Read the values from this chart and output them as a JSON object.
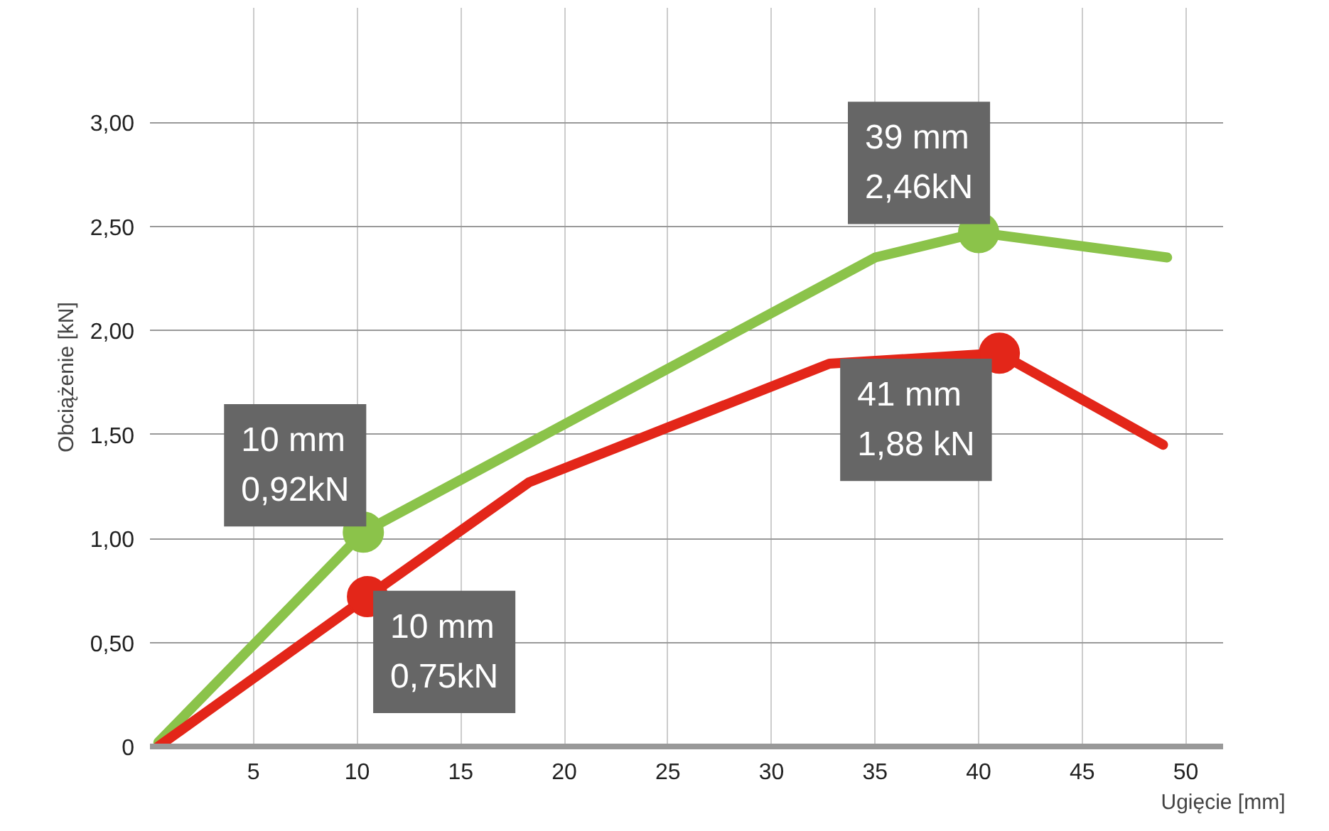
{
  "chart_data": {
    "type": "line",
    "xlabel": "Ugięcie [mm]",
    "ylabel": "Obciążenie [kN]",
    "series": [
      {
        "color": "#8bc34a",
        "x": [
          0.4,
          10.3,
          35,
          40,
          49.1
        ],
        "values": [
          0.02,
          1.03,
          2.35,
          2.47,
          2.35
        ]
      },
      {
        "color": "#e32619",
        "x": [
          0.4,
          10.5,
          18.3,
          32.8,
          41,
          48.9
        ],
        "values": [
          0.0,
          0.72,
          1.27,
          1.84,
          1.89,
          1.45
        ]
      }
    ],
    "xlim": [
      0,
      51.8
    ],
    "ylim": [
      0,
      3.55
    ],
    "xticks": [
      5,
      10,
      15,
      20,
      25,
      30,
      35,
      40,
      45,
      50
    ],
    "yticks": [
      {
        "value": 0,
        "label": "0"
      },
      {
        "value": 0.5,
        "label": "0,50"
      },
      {
        "value": 1,
        "label": "1,00"
      },
      {
        "value": 1.5,
        "label": "1,50"
      },
      {
        "value": 2,
        "label": "2,00"
      },
      {
        "value": 2.5,
        "label": "2,50"
      },
      {
        "value": 3,
        "label": "3,00"
      }
    ],
    "grid": true,
    "marker": "none",
    "line_style": "solid",
    "annotations": [
      {
        "text": "10 mm\n0,92kN",
        "x": 10.3,
        "y": 1.03
      },
      {
        "text": "10 mm\n0,75kN",
        "x": 10.5,
        "y": 0.72
      },
      {
        "text": "39 mm\n2,46kN",
        "x": 40,
        "y": 2.47
      },
      {
        "text": "41 mm\n1,88 kN",
        "x": 41,
        "y": 1.89
      }
    ]
  }
}
